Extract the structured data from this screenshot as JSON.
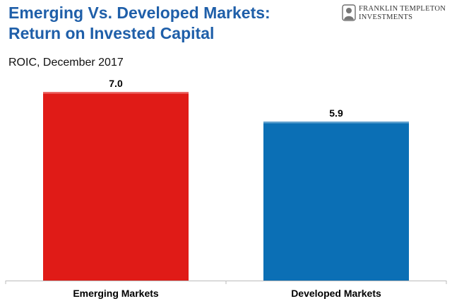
{
  "header": {
    "title_line1": "Emerging Vs. Developed Markets:",
    "title_line2": "Return on Invested Capital",
    "subtitle": "ROIC, December 2017"
  },
  "logo": {
    "line1": "FRANKLIN TEMPLETON",
    "line2": "INVESTMENTS",
    "icon": "franklin-portrait-seal-icon"
  },
  "colors": {
    "title": "#1f5fa9",
    "emerging": "#e01b17",
    "developed": "#0b6fb5",
    "axis": "#bbbbbb"
  },
  "chart_data": {
    "type": "bar",
    "title": "Emerging Vs. Developed Markets: Return on Invested Capital",
    "subtitle": "ROIC, December 2017",
    "categories": [
      "Emerging Markets",
      "Developed Markets"
    ],
    "values": [
      7.0,
      5.9
    ],
    "value_labels": [
      "7.0",
      "5.9"
    ],
    "ylim": [
      0,
      7.0
    ],
    "xlabel": "",
    "ylabel": "",
    "grid": false,
    "legend": "none"
  }
}
